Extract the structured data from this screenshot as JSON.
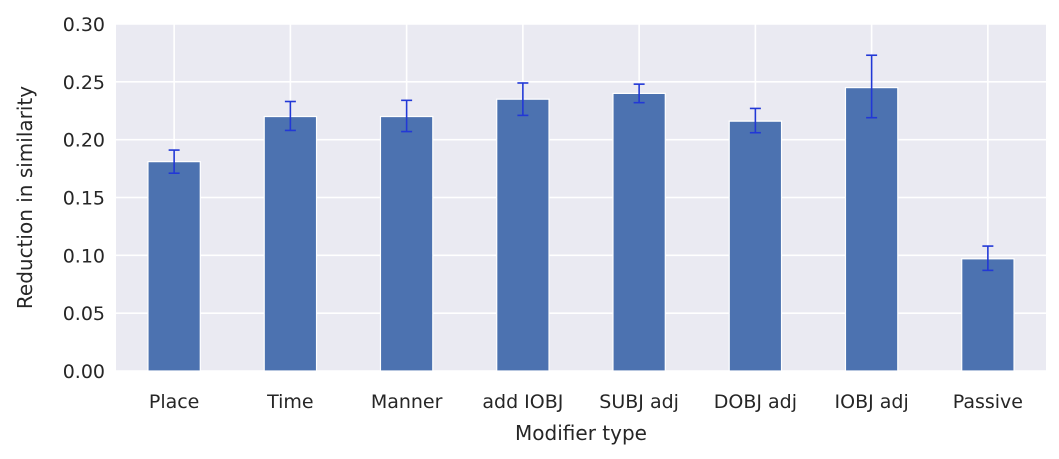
{
  "chart_data": {
    "type": "bar",
    "title": "",
    "xlabel": "Modifier type",
    "ylabel": "Reduction in similarity",
    "categories": [
      "Place",
      "Time",
      "Manner",
      "add IOBJ",
      "SUBJ adj",
      "DOBJ adj",
      "IOBJ adj",
      "Passive"
    ],
    "values": [
      0.181,
      0.22,
      0.22,
      0.235,
      0.24,
      0.216,
      0.245,
      0.097
    ],
    "error_low": [
      0.171,
      0.208,
      0.207,
      0.221,
      0.232,
      0.206,
      0.219,
      0.087
    ],
    "error_high": [
      0.191,
      0.233,
      0.234,
      0.249,
      0.248,
      0.227,
      0.273,
      0.108
    ],
    "ylim": [
      0,
      0.3
    ],
    "yticks": [
      "0.00",
      "0.05",
      "0.10",
      "0.15",
      "0.20",
      "0.25",
      "0.30"
    ],
    "grid": true,
    "colors": {
      "background": "#EAEAF2",
      "bar": "#4C72B0",
      "errorbar": "#2238D6",
      "grid": "#FFFFFF"
    }
  }
}
